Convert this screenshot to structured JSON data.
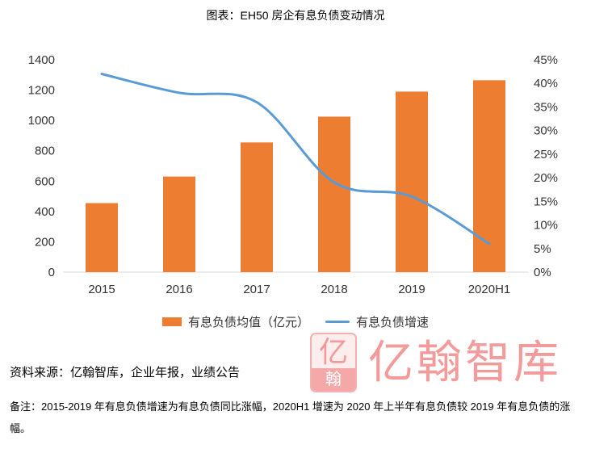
{
  "chart_data": {
    "type": "bar",
    "title": "图表：EH50 房企有息负债变动情况",
    "categories": [
      "2015",
      "2016",
      "2017",
      "2018",
      "2019",
      "2020H1"
    ],
    "series": [
      {
        "name": "有息负债均值（亿元）",
        "type": "bar",
        "axis": "left",
        "color": "#ED7D31",
        "values": [
          455,
          630,
          855,
          1025,
          1190,
          1265
        ]
      },
      {
        "name": "有息负债增速",
        "type": "line",
        "axis": "right",
        "smooth": true,
        "unit": "%",
        "color": "#5B9BD5",
        "values": [
          42,
          38,
          36,
          19,
          16,
          6
        ]
      }
    ],
    "xlabel": "",
    "ylabel": "",
    "ylim": [
      0,
      1400
    ],
    "y_ticks": [
      "0",
      "200",
      "400",
      "600",
      "800",
      "1000",
      "1200",
      "1400"
    ],
    "y2lim": [
      0,
      45
    ],
    "y2_ticks": [
      "0%",
      "5%",
      "10%",
      "15%",
      "20%",
      "25%",
      "30%",
      "35%",
      "40%",
      "45%"
    ],
    "grid": false,
    "legend": "bottom"
  },
  "source": "资料来源：亿翰智库，企业年报，业绩公告",
  "logo": {
    "text": "亿翰智库",
    "mark_top": "亿",
    "mark_bottom": "翰",
    "color": "#F39B9B"
  },
  "note": "备注：2015-2019 年有息负债增速为有息负债同比涨幅，2020H1 增速为 2020 年上半年有息负债较 2019 年有息负债的涨幅。"
}
